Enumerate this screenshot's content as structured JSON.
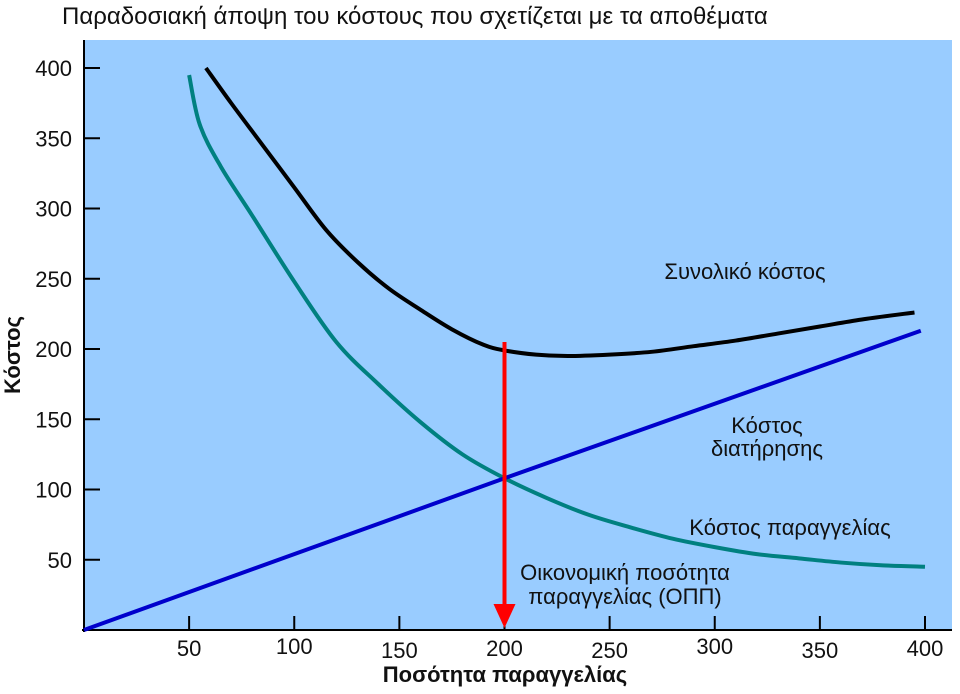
{
  "chart_data": {
    "type": "line",
    "title": "Παραδοσιακή άποψη του κόστους που σχετίζεται με τα αποθέματα",
    "xlabel": "Ποσότητα παραγγελίας",
    "ylabel": "Κόστος",
    "xlim": [
      0,
      400
    ],
    "ylim": [
      0,
      400
    ],
    "x_ticks": [
      50,
      100,
      150,
      200,
      250,
      300,
      350,
      400
    ],
    "y_ticks": [
      50,
      100,
      150,
      200,
      250,
      300,
      350,
      400
    ],
    "grid": false,
    "background_color": "#99CCFF",
    "series": [
      {
        "key": "total",
        "label": "Συνολικό κόστος",
        "color": "#000000",
        "points": [
          [
            58,
            400
          ],
          [
            70,
            375
          ],
          [
            85,
            345
          ],
          [
            100,
            315
          ],
          [
            115,
            285
          ],
          [
            130,
            262
          ],
          [
            145,
            243
          ],
          [
            160,
            228
          ],
          [
            175,
            214
          ],
          [
            190,
            203
          ],
          [
            200,
            199
          ],
          [
            215,
            196
          ],
          [
            230,
            195
          ],
          [
            250,
            196
          ],
          [
            270,
            198
          ],
          [
            290,
            202
          ],
          [
            310,
            206
          ],
          [
            330,
            211
          ],
          [
            350,
            216
          ],
          [
            370,
            221
          ],
          [
            395,
            226
          ]
        ]
      },
      {
        "key": "holding",
        "label": "Κόστος διατήρησης",
        "color": "#0000CC",
        "points": [
          [
            0,
            0
          ],
          [
            200,
            108
          ],
          [
            398,
            213
          ]
        ]
      },
      {
        "key": "ordering",
        "label": "Κόστος παραγγελίας",
        "color": "#008080",
        "points": [
          [
            50,
            395
          ],
          [
            55,
            360
          ],
          [
            65,
            330
          ],
          [
            80,
            295
          ],
          [
            100,
            248
          ],
          [
            120,
            205
          ],
          [
            140,
            175
          ],
          [
            160,
            148
          ],
          [
            180,
            125
          ],
          [
            200,
            108
          ],
          [
            220,
            94
          ],
          [
            240,
            82
          ],
          [
            260,
            73
          ],
          [
            280,
            65
          ],
          [
            300,
            59
          ],
          [
            320,
            54
          ],
          [
            340,
            51
          ],
          [
            360,
            48
          ],
          [
            380,
            46
          ],
          [
            400,
            45
          ]
        ]
      }
    ],
    "annotations": [
      {
        "key": "eoq",
        "text_lines": [
          "Οικονομική ποσότητα",
          "παραγγελίας (ΟΠΠ)"
        ],
        "arrow_x": 200,
        "arrow_from_y": 205,
        "arrow_to_y": 0,
        "color": "#FF0000"
      }
    ]
  }
}
